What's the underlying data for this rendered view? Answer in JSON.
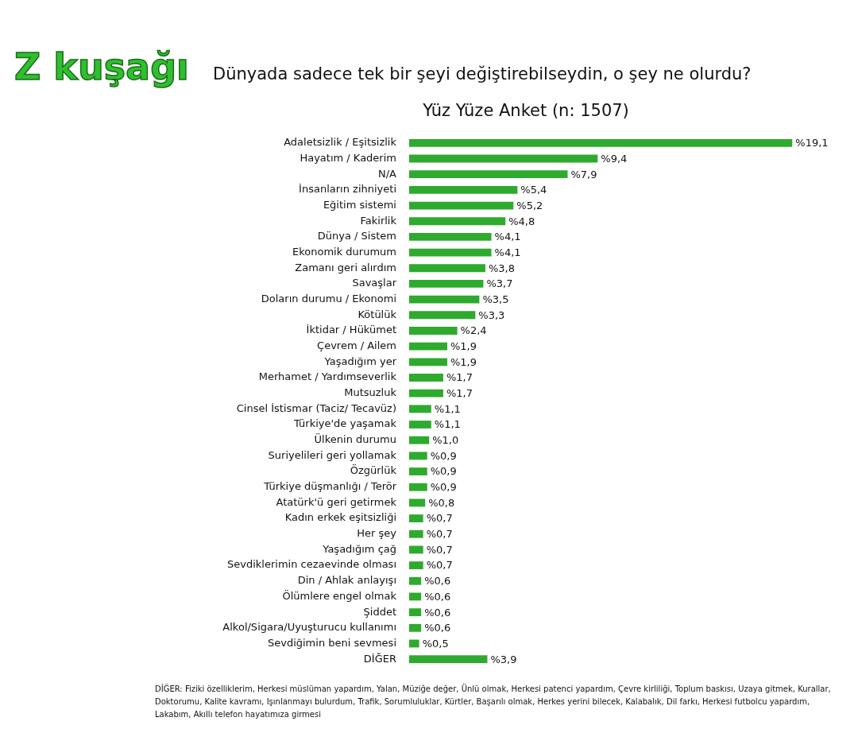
{
  "chart_data": {
    "type": "bar",
    "orientation": "horizontal",
    "title": "Dünyada sadece tek bir şeyi değiştirebilseydin, o şey ne olurdu?",
    "subtitle": "Yüz Yüze Anket (n: 1507)",
    "annotations": [
      "Z kuşağı",
      "DİĞER: Fiziki özelliklerim, Herkesi müslüman yapardım, Yalan, Müziğe değer, Ünlü olmak, Herkesi patenci yapardım, Çevre kirliliği, Toplum baskısı, Uzaya gitmek, Kurallar, Doktorumu, Kalite kavramı, Işınlanmayı bulurdum, Trafik, Sorumluluklar, Kürtler, Başarılı olmak, Herkes yerini bilecek, Kalabalık, Dil farkı, Herkesi futbolcu yapardım, Lakabım, Akıllı telefon hayatımıza girmesi"
    ],
    "categories": [
      "Adaletsizlik / Eşitsizlik",
      "Hayatım / Kaderim",
      "N/A",
      "İnsanların zihniyeti",
      "Eğitim sistemi",
      "Fakirlik",
      "Dünya / Sistem",
      "Ekonomik durumum",
      "Zamanı geri alırdım",
      "Savaşlar",
      "Doların durumu / Ekonomi",
      "Kötülük",
      "İktidar / Hükümet",
      "Çevrem / Ailem",
      "Yaşadığım yer",
      "Merhamet / Yardımseverlik",
      "Mutsuzluk",
      "Cinsel İstismar (Taciz/ Tecavüz)",
      "Türkiye'de yaşamak",
      "Ülkenin durumu",
      "Suriyelileri geri yollamak",
      "Özgürlük",
      "Türkiye düşmanlığı / Terör",
      "Atatürk'ü geri getirmek",
      "Kadın erkek eşitsizliği",
      "Her şey",
      "Yaşadığım çağ",
      "Sevdiklerimin cezaevinde olması",
      "Din / Ahlak anlayışı",
      "Ölümlere engel olmak",
      "Şiddet",
      "Alkol/Sigara/Uyuşturucu kullanımı",
      "Sevdiğimin beni sevmesi",
      "DİĞER"
    ],
    "values": [
      19.1,
      9.4,
      7.9,
      5.4,
      5.2,
      4.8,
      4.1,
      4.1,
      3.8,
      3.7,
      3.5,
      3.3,
      2.4,
      1.9,
      1.9,
      1.7,
      1.7,
      1.1,
      1.1,
      1.0,
      0.9,
      0.9,
      0.9,
      0.8,
      0.7,
      0.7,
      0.7,
      0.7,
      0.6,
      0.6,
      0.6,
      0.6,
      0.5,
      3.9
    ],
    "value_labels": [
      "%19,1",
      "%9,4",
      "%7,9",
      "%5,4",
      "%5,2",
      "%4,8",
      "%4,1",
      "%4,1",
      "%3,8",
      "%3,7",
      "%3,5",
      "%3,3",
      "%2,4",
      "%1,9",
      "%1,9",
      "%1,7",
      "%1,7",
      "%1,1",
      "%1,1",
      "%1,0",
      "%0,9",
      "%0,9",
      "%0,9",
      "%0,8",
      "%0,7",
      "%0,7",
      "%0,7",
      "%0,7",
      "%0,6",
      "%0,6",
      "%0,6",
      "%0,6",
      "%0,5",
      "%3,9"
    ],
    "color": "#2eaa2e",
    "tick_labels": "y"
  }
}
